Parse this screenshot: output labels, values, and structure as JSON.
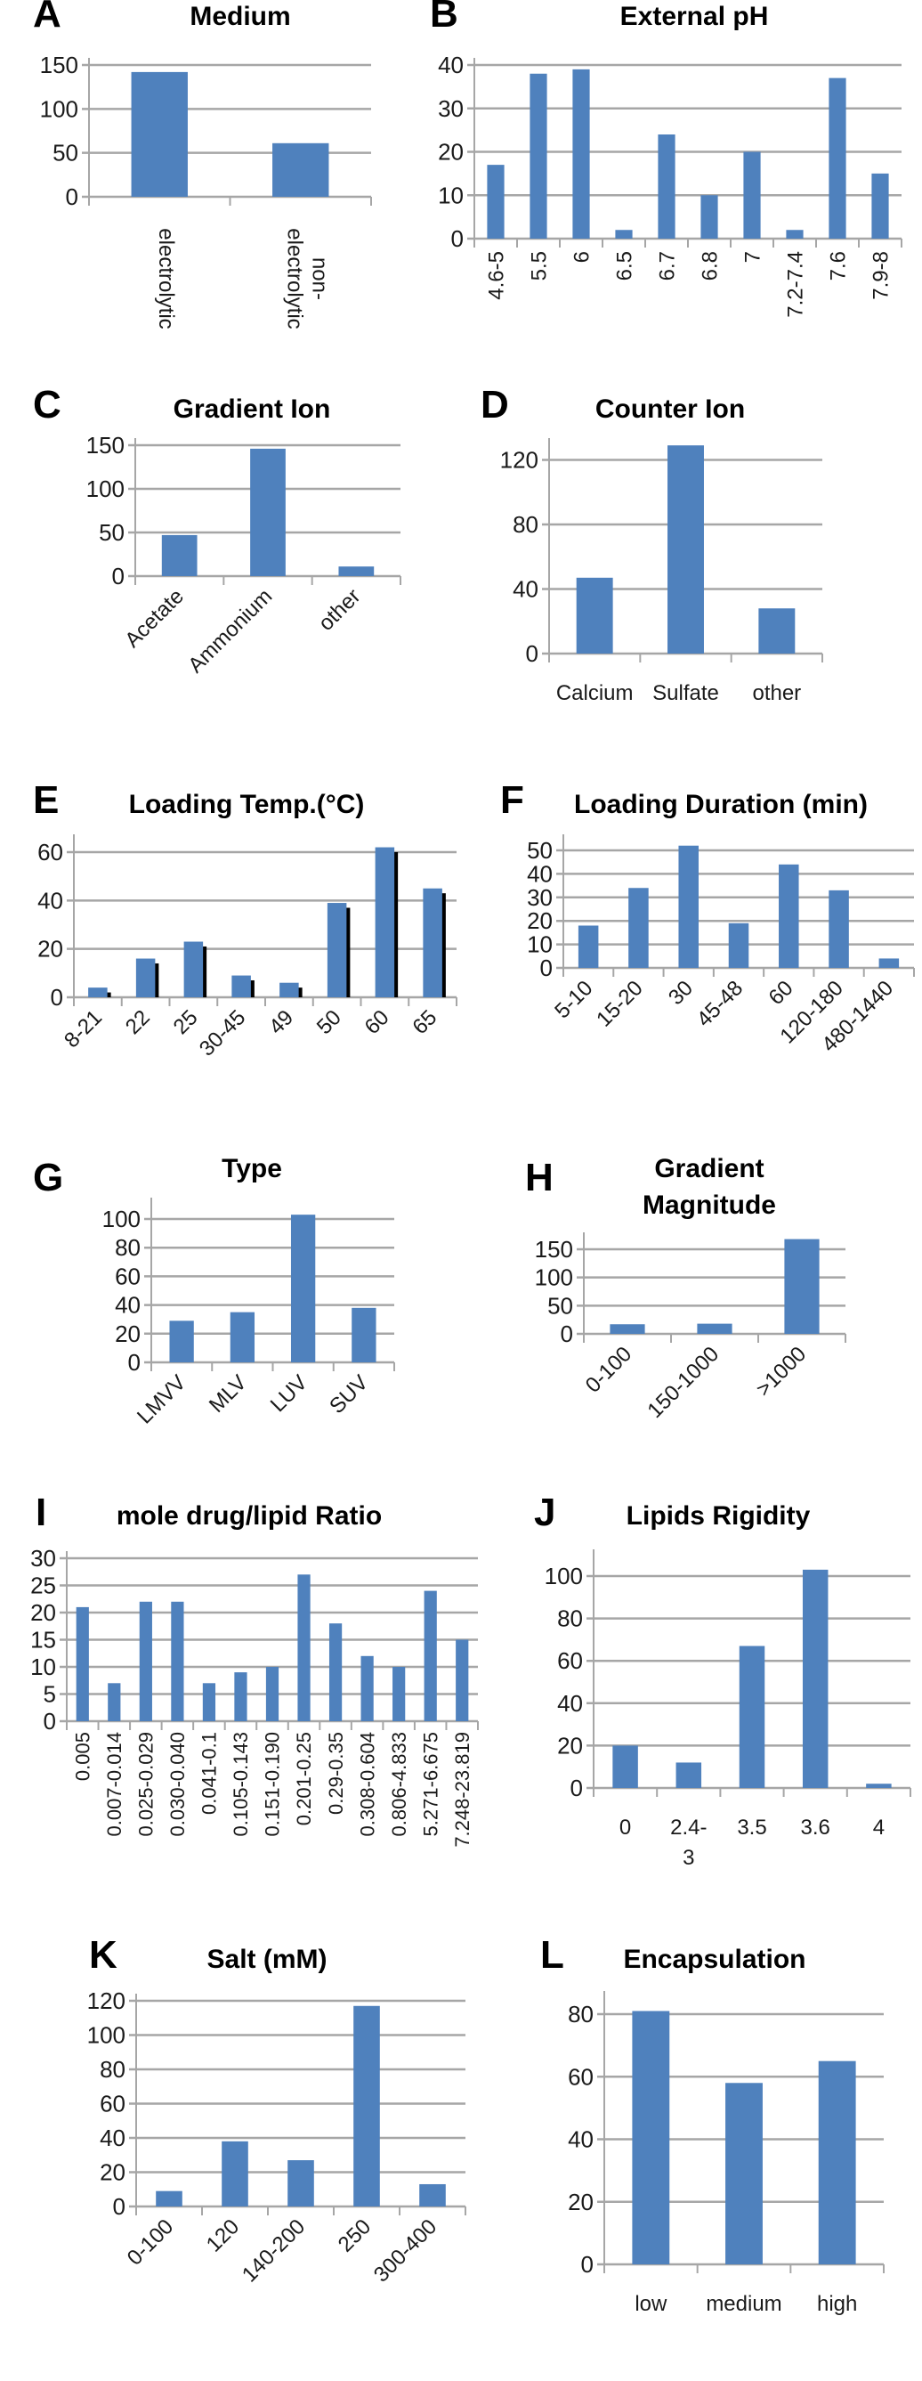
{
  "colors": {
    "bar": "#4f81bd",
    "grid": "#a6a6a6",
    "shadow": "#000000"
  },
  "chart_data": [
    {
      "type": "bar",
      "letter": "A",
      "title": "Medium",
      "categories": [
        "electrolytic",
        [
          "non-",
          "electrolytic"
        ]
      ],
      "values": [
        142,
        61
      ],
      "ylim": [
        0,
        150
      ],
      "yticks": [
        0,
        50,
        100,
        150
      ],
      "grid": true
    },
    {
      "type": "bar",
      "letter": "B",
      "title": "External pH",
      "categories": [
        "4.6-5",
        "5.5",
        "6",
        "6.5",
        "6.7",
        "6.8",
        "7",
        "7.2-7.4",
        "7.6",
        "7.9-8"
      ],
      "values": [
        17,
        38,
        39,
        2,
        24,
        10,
        20,
        2,
        37,
        15
      ],
      "ylim": [
        0,
        40
      ],
      "yticks": [
        0,
        10,
        20,
        30,
        40
      ],
      "grid": true
    },
    {
      "type": "bar",
      "letter": "C",
      "title": "Gradient Ion",
      "categories": [
        "Acetate",
        "Ammonium",
        "other"
      ],
      "values": [
        47,
        146,
        11
      ],
      "ylim": [
        0,
        150
      ],
      "yticks": [
        0,
        50,
        100,
        150
      ],
      "grid": true
    },
    {
      "type": "bar",
      "letter": "D",
      "title": "Counter Ion",
      "categories": [
        "Calcium",
        "Sulfate",
        "other"
      ],
      "values": [
        47,
        129,
        28
      ],
      "ylim": [
        0,
        120
      ],
      "yticks": [
        0,
        40,
        80,
        120
      ],
      "grid": true
    },
    {
      "type": "bar",
      "letter": "E",
      "title": "Loading Temp.(°C)",
      "categories": [
        "8-21",
        "22",
        "25",
        "30-45",
        "49",
        "50",
        "60",
        "65"
      ],
      "values": [
        4,
        16,
        23,
        9,
        6,
        39,
        62,
        45
      ],
      "ylim": [
        0,
        60
      ],
      "yticks": [
        0,
        20,
        40,
        60
      ],
      "grid": true,
      "bar_shadow": true
    },
    {
      "type": "bar",
      "letter": "F",
      "title": "Loading Duration (min)",
      "categories": [
        "5-10",
        "15-20",
        "30",
        "45-48",
        "60",
        "120-180",
        "480-1440"
      ],
      "values": [
        18,
        34,
        52,
        19,
        44,
        33,
        4
      ],
      "ylim": [
        0,
        50
      ],
      "yticks": [
        0,
        10,
        20,
        30,
        40,
        50
      ],
      "grid": true
    },
    {
      "type": "bar",
      "letter": "G",
      "title": "Type",
      "categories": [
        "LMVV",
        "MLV",
        "LUV",
        "SUV"
      ],
      "values": [
        29,
        35,
        103,
        38
      ],
      "ylim": [
        0,
        100
      ],
      "yticks": [
        0,
        20,
        40,
        60,
        80,
        100
      ],
      "grid": true
    },
    {
      "type": "bar",
      "letter": "H",
      "title": [
        "Gradient",
        "Magnitude"
      ],
      "categories": [
        "0-100",
        "150-1000",
        ">1000"
      ],
      "values": [
        17,
        18,
        168
      ],
      "ylim": [
        0,
        150
      ],
      "yticks": [
        0,
        50,
        100,
        150
      ],
      "grid": true
    },
    {
      "type": "bar",
      "letter": "I",
      "title": "mole drug/lipid Ratio",
      "categories": [
        "0.005",
        "0.007-0.014",
        "0.025-0.029",
        "0.030-0.040",
        "0.041-0.1",
        "0.105-0.143",
        "0.151-0.190",
        "0.201-0.25",
        "0.29-0.35",
        "0.308-0.604",
        "0.806-4.833",
        "5.271-6.675",
        "7.248-23.819"
      ],
      "values": [
        21,
        7,
        22,
        22,
        7,
        9,
        10,
        27,
        18,
        12,
        10,
        24,
        15
      ],
      "ylim": [
        0,
        30
      ],
      "yticks": [
        0,
        5,
        10,
        15,
        20,
        25,
        30
      ],
      "grid": true
    },
    {
      "type": "bar",
      "letter": "J",
      "title": "Lipids Rigidity",
      "categories": [
        "0",
        [
          "2.4-",
          "3"
        ],
        "3.5",
        "3.6",
        "4"
      ],
      "values": [
        20,
        12,
        67,
        103,
        2
      ],
      "ylim": [
        0,
        100
      ],
      "yticks": [
        0,
        20,
        40,
        60,
        80,
        100
      ],
      "grid": true
    },
    {
      "type": "bar",
      "letter": "K",
      "title": "Salt (mM)",
      "categories": [
        "0-100",
        "120",
        "140-200",
        "250",
        "300-400"
      ],
      "values": [
        9,
        38,
        27,
        117,
        13
      ],
      "ylim": [
        0,
        120
      ],
      "yticks": [
        0,
        20,
        40,
        60,
        80,
        100,
        120
      ],
      "grid": true
    },
    {
      "type": "bar",
      "letter": "L",
      "title": "Encapsulation",
      "categories": [
        "low",
        "medium",
        "high"
      ],
      "values": [
        81,
        58,
        65
      ],
      "ylim": [
        0,
        80
      ],
      "yticks": [
        0,
        20,
        40,
        60,
        80
      ],
      "grid": true
    }
  ]
}
